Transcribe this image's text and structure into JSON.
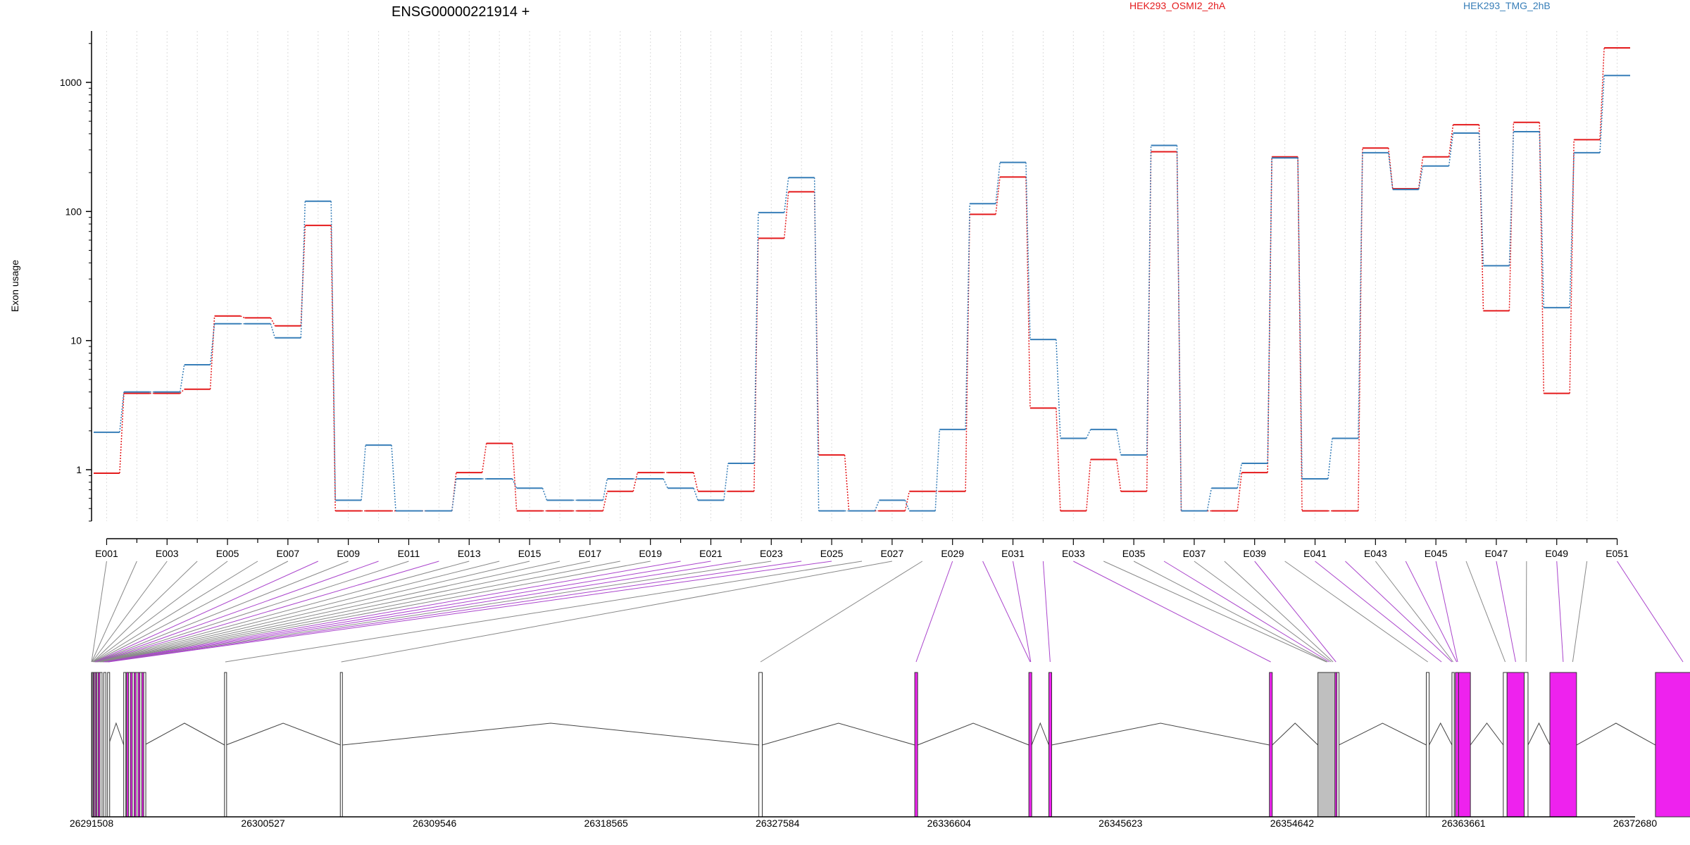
{
  "chart_data": {
    "type": "line",
    "title": "ENSG00000221914 +",
    "ylabel": "Exon usage",
    "xlabel": "",
    "yscale": "log",
    "ylim": [
      0.4,
      2500
    ],
    "yticks": [
      "1",
      "10",
      "100",
      "1000"
    ],
    "grid": "vertical dotted lines at each exon",
    "legend_position": "top",
    "colors": {
      "OSMI2": "#e41a1c",
      "TMG": "#377eb8",
      "exon_flagged": "#ee22ee",
      "exon_normal": "#ffffff",
      "exon_grey": "#bfbfbf",
      "connector_flagged": "#aa44cc",
      "connector_normal": "#888888"
    },
    "series": [
      {
        "name": "HEK293_OSMI2_2hA",
        "color": "#e41a1c",
        "values": [
          0.94,
          3.9,
          3.9,
          4.2,
          15.5,
          15,
          13,
          78,
          0.48,
          0.48,
          0.48,
          0.48,
          0.95,
          1.6,
          0.48,
          0.48,
          0.48,
          0.68,
          0.95,
          0.95,
          0.68,
          0.68,
          62,
          142,
          1.3,
          0.48,
          0.48,
          0.68,
          0.68,
          95,
          185,
          3,
          0.48,
          1.2,
          0.68,
          290,
          0.48,
          0.48,
          0.95,
          265,
          0.48,
          0.48,
          310,
          150,
          265,
          470,
          17,
          490,
          3.9,
          360,
          1850
        ]
      },
      {
        "name": "HEK293_TMG_2hB",
        "color": "#377eb8",
        "values": [
          1.95,
          4.0,
          4.0,
          6.5,
          13.5,
          13.5,
          10.5,
          120,
          0.58,
          1.55,
          0.48,
          0.48,
          0.85,
          0.85,
          0.72,
          0.58,
          0.58,
          0.85,
          0.85,
          0.72,
          0.58,
          1.12,
          98,
          183,
          0.48,
          0.48,
          0.58,
          0.48,
          2.05,
          115,
          240,
          10.2,
          1.75,
          2.05,
          1.3,
          325,
          0.48,
          0.72,
          1.12,
          260,
          0.85,
          1.75,
          285,
          148,
          225,
          405,
          38,
          415,
          18,
          285,
          1130
        ]
      }
    ],
    "exon_labels": [
      "E001",
      "E003",
      "E005",
      "E007",
      "E009",
      "E011",
      "E013",
      "E015",
      "E017",
      "E019",
      "E021",
      "E023",
      "E025",
      "E027",
      "E029",
      "E031",
      "E033",
      "E035",
      "E037",
      "E039",
      "E041",
      "E043",
      "E045",
      "E047",
      "E049",
      "E051"
    ],
    "genomic_axis": {
      "ticks": [
        "26291508",
        "26300527",
        "26309546",
        "26318565",
        "26327584",
        "26336604",
        "26345623",
        "26354642",
        "26363661",
        "26372680"
      ],
      "range": [
        26291508,
        26372680
      ]
    },
    "exons": [
      {
        "start": 26291508,
        "end": 26291540,
        "flagged": true
      },
      {
        "start": 26291545,
        "end": 26291590,
        "flagged": false
      },
      {
        "start": 26291600,
        "end": 26291640,
        "flagged": true
      },
      {
        "start": 26291660,
        "end": 26291700,
        "flagged": false
      },
      {
        "start": 26291720,
        "end": 26291760,
        "flagged": true
      },
      {
        "start": 26291790,
        "end": 26291830,
        "flagged": false
      },
      {
        "start": 26291860,
        "end": 26291900,
        "flagged": true
      },
      {
        "start": 26291950,
        "end": 26291990,
        "flagged": false
      },
      {
        "start": 26292150,
        "end": 26292200,
        "flagged": false
      },
      {
        "start": 26292350,
        "end": 26292400,
        "flagged": false
      },
      {
        "start": 26293200,
        "end": 26293240,
        "flagged": false
      },
      {
        "start": 26293350,
        "end": 26293390,
        "flagged": true
      },
      {
        "start": 26293450,
        "end": 26293490,
        "flagged": false
      },
      {
        "start": 26293550,
        "end": 26293590,
        "flagged": true
      },
      {
        "start": 26293650,
        "end": 26293690,
        "flagged": false
      },
      {
        "start": 26293750,
        "end": 26293790,
        "flagged": true
      },
      {
        "start": 26293850,
        "end": 26293890,
        "flagged": false
      },
      {
        "start": 26293950,
        "end": 26293990,
        "flagged": true
      },
      {
        "start": 26294050,
        "end": 26294090,
        "flagged": false
      },
      {
        "start": 26294150,
        "end": 26294190,
        "flagged": true
      },
      {
        "start": 26294250,
        "end": 26294290,
        "flagged": false
      },
      {
        "start": 26298500,
        "end": 26298580,
        "flagged": false
      },
      {
        "start": 26304590,
        "end": 26304700,
        "flagged": false
      },
      {
        "start": 26326600,
        "end": 26326780,
        "flagged": false
      },
      {
        "start": 26334800,
        "end": 26334950,
        "flagged": true
      },
      {
        "start": 26340800,
        "end": 26340950,
        "flagged": true
      },
      {
        "start": 26341850,
        "end": 26342000,
        "flagged": true
      },
      {
        "start": 26353450,
        "end": 26353600,
        "flagged": true
      },
      {
        "start": 26356000,
        "end": 26356900,
        "flagged": false,
        "grey": true
      },
      {
        "start": 26356900,
        "end": 26357000,
        "flagged": true
      },
      {
        "start": 26357000,
        "end": 26357100,
        "flagged": false
      },
      {
        "start": 26361700,
        "end": 26361850,
        "flagged": false
      },
      {
        "start": 26363050,
        "end": 26363170,
        "flagged": false
      },
      {
        "start": 26363230,
        "end": 26363400,
        "flagged": true
      },
      {
        "start": 26363400,
        "end": 26364020,
        "flagged": true
      },
      {
        "start": 26365750,
        "end": 26365950,
        "flagged": false
      },
      {
        "start": 26365950,
        "end": 26366850,
        "flagged": true
      },
      {
        "start": 26366850,
        "end": 26367050,
        "flagged": false
      },
      {
        "start": 26368200,
        "end": 26369600,
        "flagged": true
      },
      {
        "start": 26373750,
        "end": 26376650,
        "flagged": true
      }
    ],
    "connectors": [
      {
        "exon": 1,
        "target": 26291508,
        "flagged": false
      },
      {
        "exon": 2,
        "target": 26291520,
        "flagged": false
      },
      {
        "exon": 3,
        "target": 26291540,
        "flagged": false
      },
      {
        "exon": 4,
        "target": 26291580,
        "flagged": false
      },
      {
        "exon": 5,
        "target": 26291600,
        "flagged": false
      },
      {
        "exon": 6,
        "target": 26291620,
        "flagged": false
      },
      {
        "exon": 7,
        "target": 26291650,
        "flagged": false
      },
      {
        "exon": 8,
        "target": 26291680,
        "flagged": true
      },
      {
        "exon": 9,
        "target": 26291700,
        "flagged": false
      },
      {
        "exon": 10,
        "target": 26291720,
        "flagged": true
      },
      {
        "exon": 11,
        "target": 26291750,
        "flagged": false
      },
      {
        "exon": 12,
        "target": 26291780,
        "flagged": true
      },
      {
        "exon": 13,
        "target": 26291810,
        "flagged": false
      },
      {
        "exon": 14,
        "target": 26291850,
        "flagged": false
      },
      {
        "exon": 15,
        "target": 26291900,
        "flagged": false
      },
      {
        "exon": 16,
        "target": 26291950,
        "flagged": false
      },
      {
        "exon": 17,
        "target": 26292000,
        "flagged": false
      },
      {
        "exon": 18,
        "target": 26292050,
        "flagged": false
      },
      {
        "exon": 19,
        "target": 26292100,
        "flagged": false
      },
      {
        "exon": 20,
        "target": 26292150,
        "flagged": true
      },
      {
        "exon": 21,
        "target": 26292200,
        "flagged": true
      },
      {
        "exon": 22,
        "target": 26292250,
        "flagged": true
      },
      {
        "exon": 23,
        "target": 26292300,
        "flagged": false
      },
      {
        "exon": 24,
        "target": 26292350,
        "flagged": true
      },
      {
        "exon": 25,
        "target": 26292400,
        "flagged": true
      },
      {
        "exon": 26,
        "target": 26298540,
        "flagged": false
      },
      {
        "exon": 27,
        "target": 26304640,
        "flagged": false
      },
      {
        "exon": 28,
        "target": 26326690,
        "flagged": false
      },
      {
        "exon": 29,
        "target": 26334870,
        "flagged": true
      },
      {
        "exon": 30,
        "target": 26340870,
        "flagged": true
      },
      {
        "exon": 31,
        "target": 26340900,
        "flagged": true
      },
      {
        "exon": 32,
        "target": 26341920,
        "flagged": true
      },
      {
        "exon": 33,
        "target": 26353520,
        "flagged": true
      },
      {
        "exon": 34,
        "target": 26356450,
        "flagged": false
      },
      {
        "exon": 35,
        "target": 26356500,
        "flagged": false
      },
      {
        "exon": 36,
        "target": 26356600,
        "flagged": true
      },
      {
        "exon": 37,
        "target": 26356700,
        "flagged": false
      },
      {
        "exon": 38,
        "target": 26356800,
        "flagged": false
      },
      {
        "exon": 39,
        "target": 26356950,
        "flagged": true
      },
      {
        "exon": 40,
        "target": 26361780,
        "flagged": false
      },
      {
        "exon": 41,
        "target": 26362500,
        "flagged": true
      },
      {
        "exon": 42,
        "target": 26363050,
        "flagged": true
      },
      {
        "exon": 43,
        "target": 26363110,
        "flagged": false
      },
      {
        "exon": 44,
        "target": 26363300,
        "flagged": true
      },
      {
        "exon": 45,
        "target": 26363350,
        "flagged": true
      },
      {
        "exon": 46,
        "target": 26365850,
        "flagged": false
      },
      {
        "exon": 47,
        "target": 26366400,
        "flagged": true
      },
      {
        "exon": 48,
        "target": 26366950,
        "flagged": false
      },
      {
        "exon": 49,
        "target": 26368900,
        "flagged": true
      },
      {
        "exon": 50,
        "target": 26369400,
        "flagged": false
      },
      {
        "exon": 51,
        "target": 26375200,
        "flagged": true
      }
    ]
  }
}
